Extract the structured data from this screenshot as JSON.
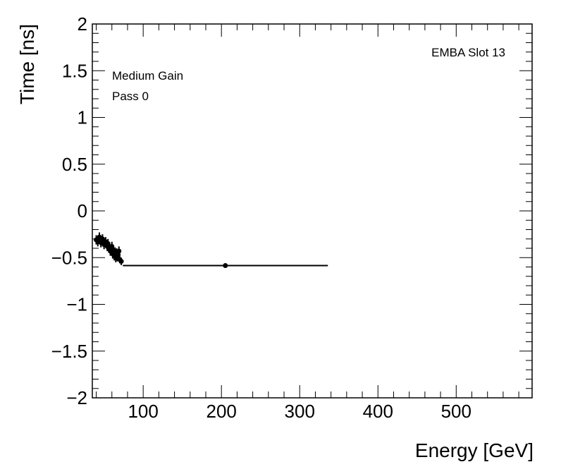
{
  "chart_data": {
    "type": "scatter",
    "xlabel": "Energy [GeV]",
    "ylabel": "Time [ns]",
    "xlim": [
      35,
      597
    ],
    "ylim": [
      -2,
      2
    ],
    "x_ticks": [
      100,
      200,
      300,
      400,
      500
    ],
    "x_tick_labels": [
      "100",
      "200",
      "300",
      "400",
      "500"
    ],
    "y_ticks": [
      -2,
      -1.5,
      -1,
      -0.5,
      0,
      0.5,
      1,
      1.5,
      2
    ],
    "y_tick_labels": [
      "−2",
      "−1.5",
      "−1",
      "−0.5",
      "0",
      "0.5",
      "1",
      "1.5",
      "2"
    ],
    "grid": false,
    "annotations": {
      "top_right": "EMBA Slot 13",
      "top_left_1": "Medium Gain",
      "top_left_2": "Pass 0"
    },
    "points": [
      {
        "x": 40,
        "y": -0.31,
        "xerr": [
          0,
          0
        ],
        "yerr": 0.05
      },
      {
        "x": 42,
        "y": -0.33,
        "xerr": [
          0,
          0
        ],
        "yerr": 0.05
      },
      {
        "x": 44,
        "y": -0.28,
        "xerr": [
          0,
          0
        ],
        "yerr": 0.05
      },
      {
        "x": 46,
        "y": -0.34,
        "xerr": [
          0,
          0
        ],
        "yerr": 0.05
      },
      {
        "x": 48,
        "y": -0.3,
        "xerr": [
          0,
          0
        ],
        "yerr": 0.05
      },
      {
        "x": 50,
        "y": -0.36,
        "xerr": [
          0,
          0
        ],
        "yerr": 0.05
      },
      {
        "x": 52,
        "y": -0.33,
        "xerr": [
          0,
          0
        ],
        "yerr": 0.05
      },
      {
        "x": 54,
        "y": -0.38,
        "xerr": [
          0,
          0
        ],
        "yerr": 0.05
      },
      {
        "x": 55,
        "y": -0.35,
        "xerr": [
          0,
          0
        ],
        "yerr": 0.05
      },
      {
        "x": 57,
        "y": -0.4,
        "xerr": [
          0,
          0
        ],
        "yerr": 0.05
      },
      {
        "x": 58,
        "y": -0.43,
        "xerr": [
          0,
          0
        ],
        "yerr": 0.05
      },
      {
        "x": 60,
        "y": -0.38,
        "xerr": [
          0,
          0
        ],
        "yerr": 0.05
      },
      {
        "x": 61,
        "y": -0.46,
        "xerr": [
          0,
          0
        ],
        "yerr": 0.05
      },
      {
        "x": 62,
        "y": -0.42,
        "xerr": [
          0,
          0
        ],
        "yerr": 0.05
      },
      {
        "x": 63,
        "y": -0.48,
        "xerr": [
          0,
          0
        ],
        "yerr": 0.05
      },
      {
        "x": 64,
        "y": -0.44,
        "xerr": [
          0,
          0
        ],
        "yerr": 0.05
      },
      {
        "x": 65,
        "y": -0.5,
        "xerr": [
          0,
          0
        ],
        "yerr": 0.05
      },
      {
        "x": 66,
        "y": -0.45,
        "xerr": [
          0,
          0
        ],
        "yerr": 0.05
      },
      {
        "x": 67,
        "y": -0.49,
        "xerr": [
          0,
          0
        ],
        "yerr": 0.05
      },
      {
        "x": 68,
        "y": -0.47,
        "xerr": [
          0,
          0
        ],
        "yerr": 0.05
      },
      {
        "x": 69,
        "y": -0.43,
        "xerr": [
          0,
          0
        ],
        "yerr": 0.05
      },
      {
        "x": 70,
        "y": -0.52,
        "xerr": [
          0,
          0
        ],
        "yerr": 0.04
      },
      {
        "x": 72,
        "y": -0.54,
        "xerr": [
          0,
          0
        ],
        "yerr": 0.04
      },
      {
        "x": 205,
        "y": -0.585,
        "xerr": [
          131,
          131
        ],
        "yerr": 0.02
      }
    ]
  }
}
